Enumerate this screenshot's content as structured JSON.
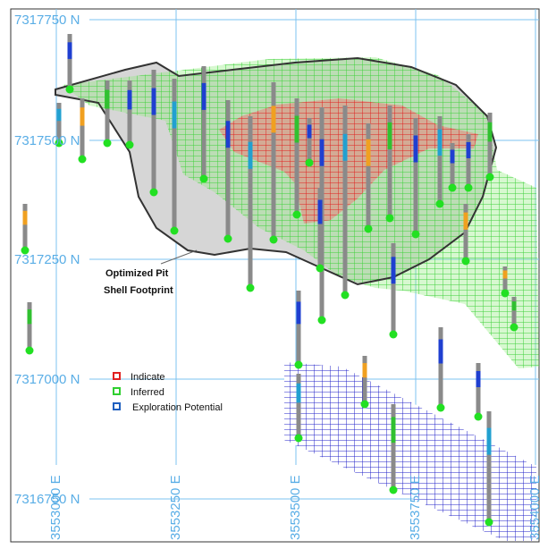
{
  "grid_labels": {
    "northing": [
      "7317750 N",
      "7317500 N",
      "7317250 N",
      "7317000 N",
      "7316750 N"
    ],
    "easting": [
      "3553000 E",
      "3553250 E",
      "3553500 E",
      "3553750 E",
      "3554000 E"
    ]
  },
  "annotation": [
    "Optimized Pit",
    "Shell Footprint"
  ],
  "legend": [
    "Indicate",
    "Inferred",
    "Exploration Potential"
  ]
}
